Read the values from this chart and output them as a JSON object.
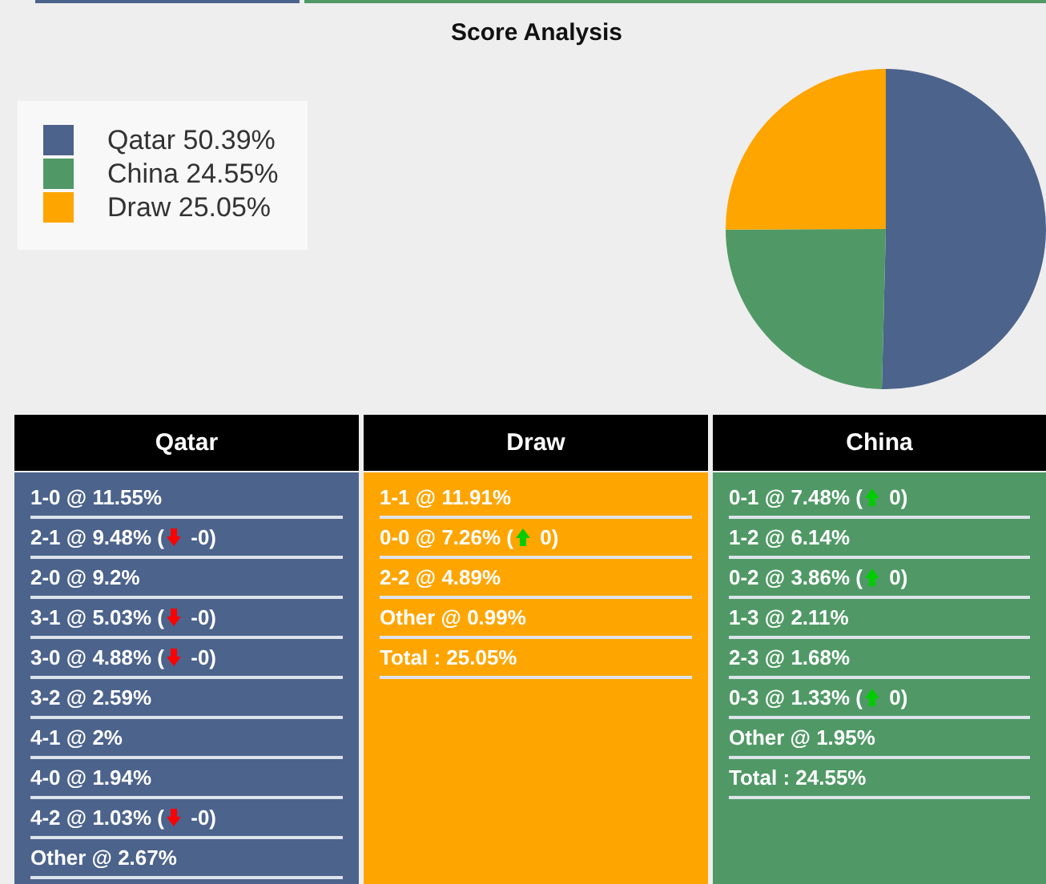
{
  "chart_data": [
    {
      "type": "pie",
      "title": "Score Analysis",
      "categories": [
        "Qatar",
        "China",
        "Draw"
      ],
      "values": [
        50.39,
        24.55,
        25.05
      ],
      "value_labels": [
        "50.39%",
        "24.55%",
        "25.05%"
      ],
      "colors": [
        "#4c638c",
        "#509966",
        "#ffa500"
      ],
      "legend": "left"
    },
    {
      "type": "other",
      "title": "Qatar",
      "color": "#4c638c",
      "annotations": [
        "1-0 @ 11.55%",
        "2-1 @ 9.48% ( -0)",
        "2-0 @ 9.2%",
        "3-1 @ 5.03% ( -0)",
        "3-0 @ 4.88% ( -0)",
        "3-2 @ 2.59%",
        "4-1 @ 2%",
        "4-0 @ 1.94%",
        "4-2 @ 1.03% ( -0)",
        "Other @ 2.67%"
      ]
    },
    {
      "type": "other",
      "title": "Draw",
      "color": "#ffa500",
      "annotations": [
        "1-1 @ 11.91%",
        "0-0 @ 7.26% ( 0)",
        "2-2 @ 4.89%",
        "Other @ 0.99%",
        "Total : 25.05%"
      ]
    },
    {
      "type": "other",
      "title": "China",
      "color": "#509966",
      "annotations": [
        "0-1 @ 7.48% ( 0)",
        "1-2 @ 6.14%",
        "0-2 @ 3.86% ( 0)",
        "1-3 @ 2.11%",
        "2-3 @ 1.68%",
        "0-3 @ 1.33% ( 0)",
        "Other @ 1.95%",
        "Total : 24.55%"
      ]
    }
  ]
}
